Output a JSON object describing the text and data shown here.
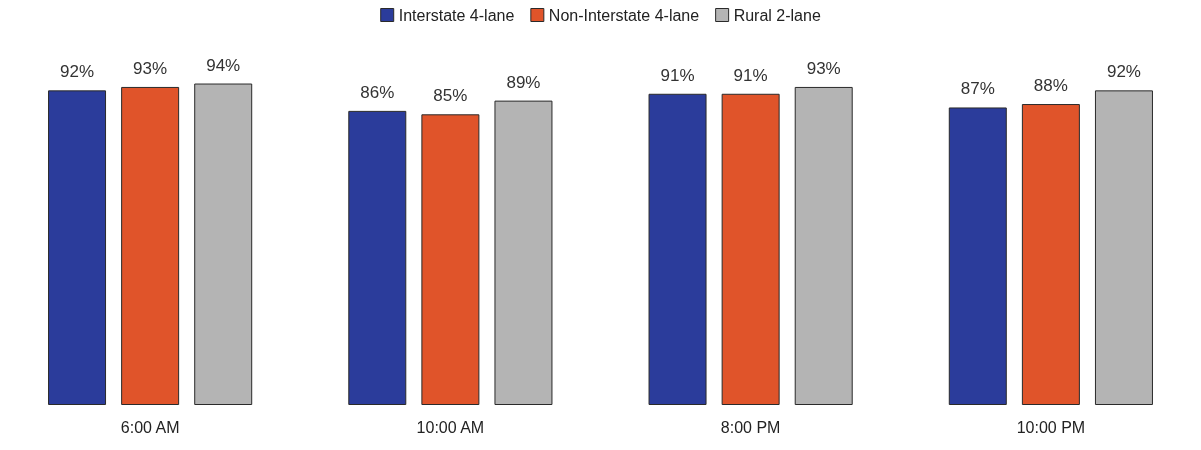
{
  "chart_data": {
    "type": "bar",
    "categories": [
      "6:00 AM",
      "10:00 AM",
      "8:00 PM",
      "10:00 PM"
    ],
    "series": [
      {
        "name": "Interstate 4-lane",
        "color": "#2b3c9b",
        "values": [
          92,
          86,
          91,
          87
        ],
        "value_labels": [
          "92%",
          "86%",
          "91%",
          "87%"
        ]
      },
      {
        "name": "Non-Interstate 4-lane",
        "color": "#e0542a",
        "values": [
          93,
          85,
          91,
          88
        ],
        "value_labels": [
          "93%",
          "85%",
          "91%",
          "88%"
        ]
      },
      {
        "name": "Rural 2-lane",
        "color": "#b4b4b4",
        "values": [
          94,
          89,
          93,
          92
        ],
        "value_labels": [
          "94%",
          "89%",
          "93%",
          "92%"
        ]
      }
    ],
    "legend": "top",
    "tick_labels": "x"
  }
}
